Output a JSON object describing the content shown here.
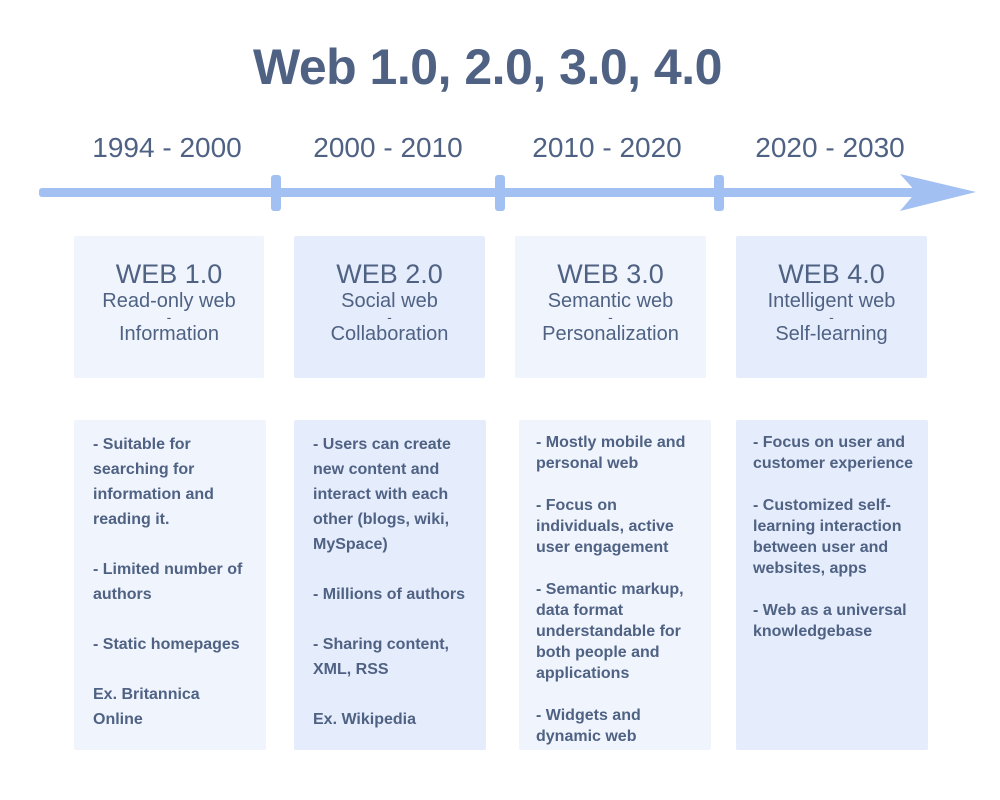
{
  "title": "Web 1.0, 2.0, 3.0, 4.0",
  "colors": {
    "text": "#4f6284",
    "timeline": "#a3c0f2",
    "box_light": "#f0f4fc",
    "box_dark": "#e5ecfb"
  },
  "eras": [
    {
      "years": "1994 - 2000",
      "name": "WEB 1.0",
      "line1": "Read-only web",
      "sep": "-",
      "line2": "Information",
      "points": [
        "- Suitable for searching for information and reading it.",
        "- Limited number of authors",
        "- Static homepages",
        "Ex. Britannica Online"
      ]
    },
    {
      "years": "2000 - 2010",
      "name": "WEB 2.0",
      "line1": "Social web",
      "sep": "-",
      "line2": "Collaboration",
      "points": [
        "- Users can create new content and interact with each other (blogs, wiki, MySpace)",
        "- Millions of authors",
        "- Sharing content, XML, RSS",
        "Ex. Wikipedia"
      ]
    },
    {
      "years": "2010 - 2020",
      "name": "WEB 3.0",
      "line1": "Semantic web",
      "sep": "-",
      "line2": "Personalization",
      "points": [
        "- Mostly mobile and personal web",
        "- Focus on individuals, active user engagement",
        "- Semantic markup, data format understandable for both people and applications",
        "- Widgets and dynamic web"
      ]
    },
    {
      "years": "2020 - 2030",
      "name": "WEB 4.0",
      "line1": "Intelligent web",
      "sep": "-",
      "line2": "Self-learning",
      "points": [
        "- Focus on user and customer experience",
        "- Customized self-learning interaction between user and websites, apps",
        "- Web as a universal knowledgebase"
      ]
    }
  ]
}
